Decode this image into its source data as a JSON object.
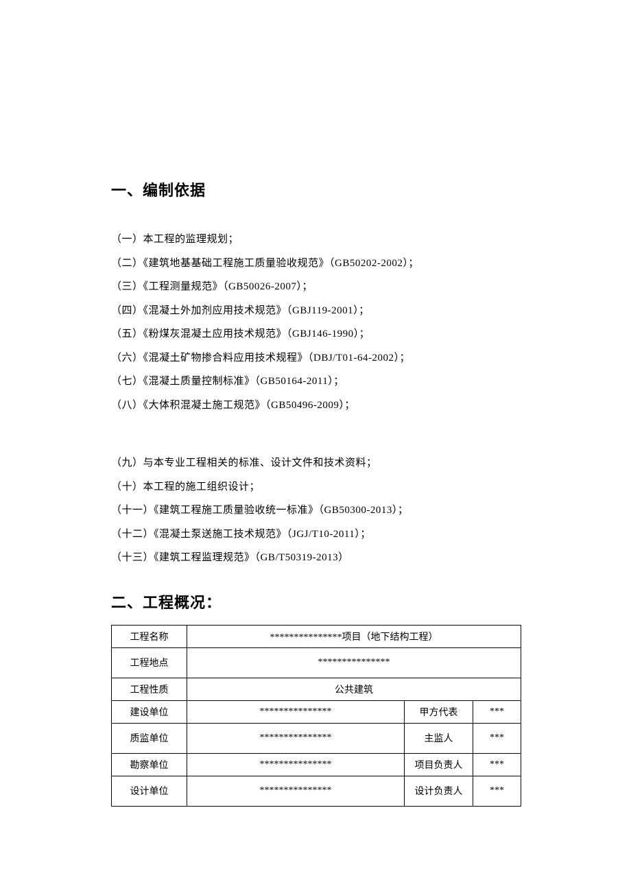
{
  "section1": {
    "heading": "一、编制依据",
    "items_group1": [
      "（一）本工程的监理规划；",
      "（二）《建筑地基基础工程施工质量验收规范》（GB50202-2002）；",
      "（三）《工程测量规范》（GB50026-2007）；",
      "（四）《混凝土外加剂应用技术规范》（GBJ119-2001）；",
      "（五）《粉煤灰混凝土应用技术规范》（GBJ146-1990）；",
      "（六）《混凝土矿物掺合料应用技术规程》（DBJ/T01-64-2002）；",
      "（七）《混凝土质量控制标准》（GB50164-2011）；",
      "（八）《大体积混凝土施工规范》（GB50496-2009）；"
    ],
    "items_group2": [
      "（九）与本专业工程相关的标准、设计文件和技术资料；",
      "（十）本工程的施工组织设计；",
      "（十一）《建筑工程施工质量验收统一标准》（GB50300-2013）；",
      "（十二）《混凝土泵送施工技术规范》（JGJ/T10-2011）；",
      "（十三）《建筑工程监理规范》（GB/T50319-2013）"
    ]
  },
  "section2": {
    "heading": "二、工程概况：",
    "table": {
      "rows": [
        {
          "label": "工程名称",
          "value": "***************项目（地下结构工程）",
          "span": 3,
          "tall": false
        },
        {
          "label": "工程地点",
          "value": "***************",
          "span": 3,
          "tall": true
        },
        {
          "label": "工程性质",
          "value": "公共建筑",
          "span": 3,
          "tall": false
        },
        {
          "label": "建设单位",
          "value": "***************",
          "role": "甲方代表",
          "stars": "***",
          "tall": false
        },
        {
          "label": "质监单位",
          "value": "***************",
          "role": "主监人",
          "stars": "***",
          "tall": true
        },
        {
          "label": "勘察单位",
          "value": "***************",
          "role": "项目负责人",
          "stars": "***",
          "tall": false
        },
        {
          "label": "设计单位",
          "value": "***************",
          "role": "设计负责人",
          "stars": "***",
          "tall": true
        }
      ]
    }
  }
}
